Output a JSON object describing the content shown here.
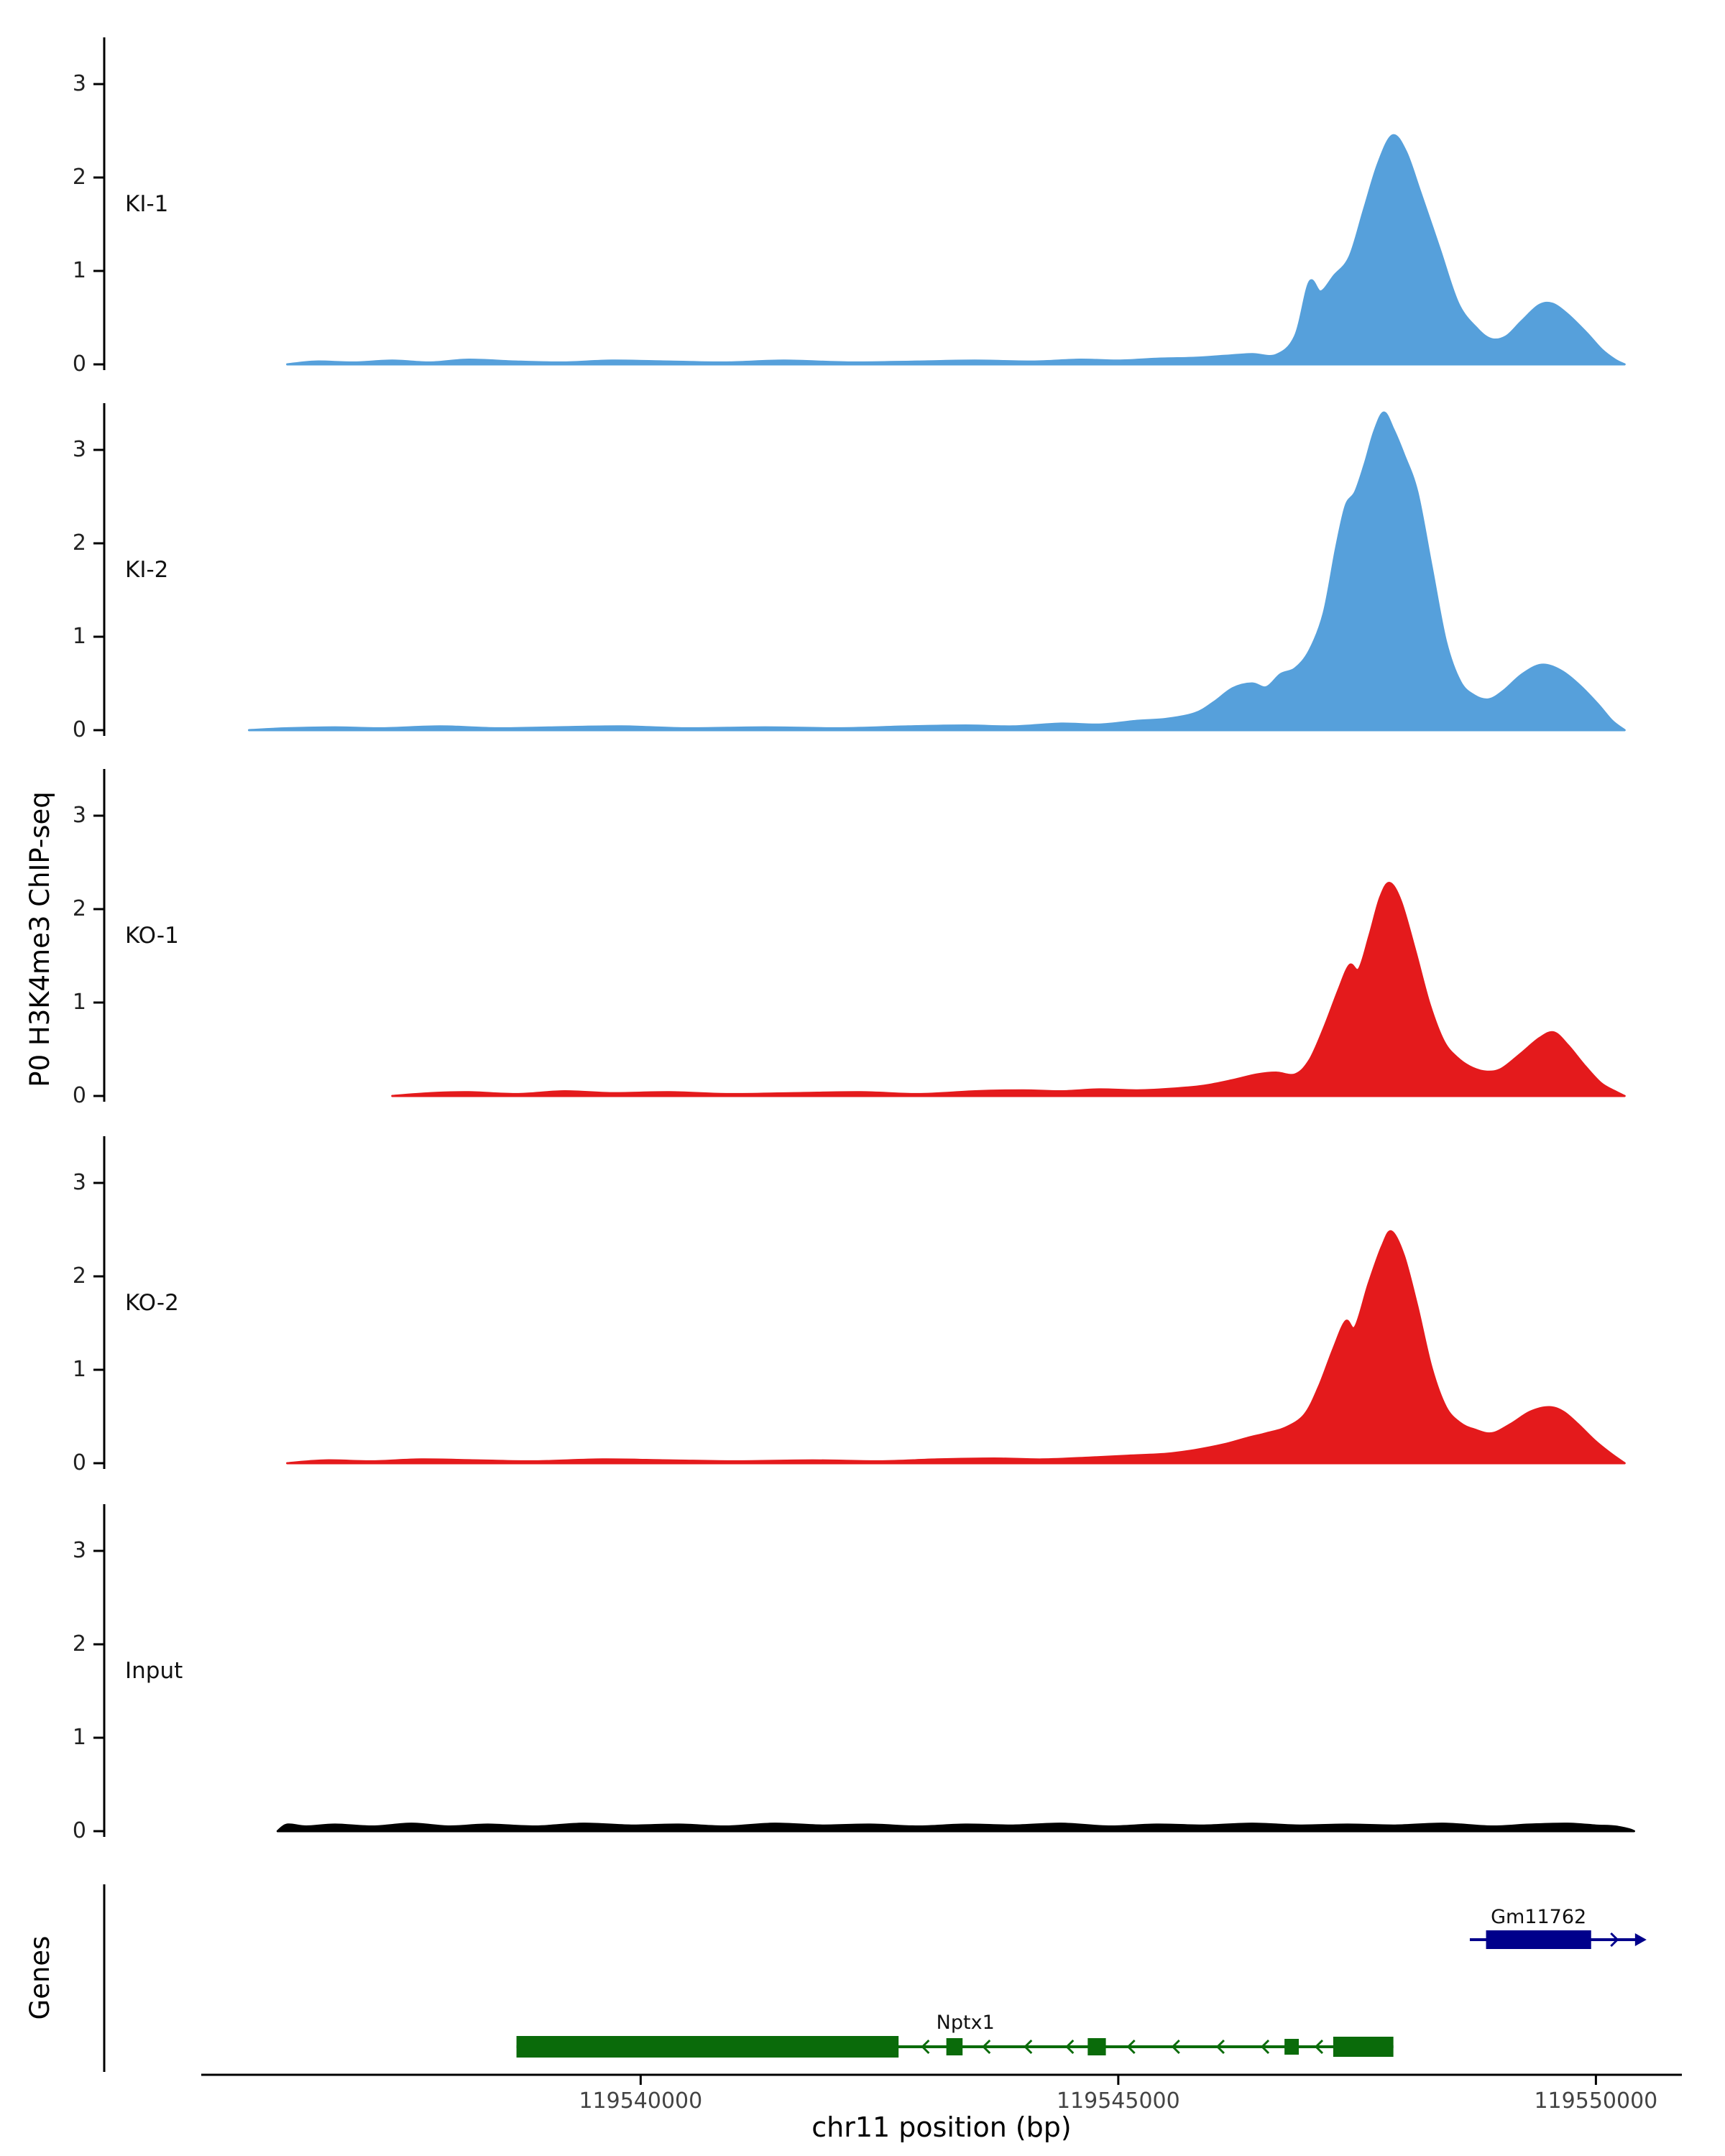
{
  "chart_data": {
    "type": "area",
    "title": "",
    "xlabel": "chr11 position (bp)",
    "ylabel": "P0 H3K4me3 ChIP-seq",
    "genes_axis_label": "Genes",
    "x_range": [
      119535400,
      119550900
    ],
    "ylim": [
      0,
      3.5
    ],
    "y_ticks": [
      0,
      1,
      2,
      3
    ],
    "x_ticks": [
      {
        "pos": 119540000,
        "label": "119540000"
      },
      {
        "pos": 119545000,
        "label": "119545000"
      },
      {
        "pos": 119550000,
        "label": "119550000"
      }
    ],
    "tracks": [
      {
        "label": "KI-1",
        "color": "#56a0db",
        "points": [
          [
            119536300,
            0
          ],
          [
            119536600,
            0.03
          ],
          [
            119537000,
            0.02
          ],
          [
            119537400,
            0.04
          ],
          [
            119537800,
            0.02
          ],
          [
            119538200,
            0.05
          ],
          [
            119538700,
            0.03
          ],
          [
            119539200,
            0.02
          ],
          [
            119539700,
            0.04
          ],
          [
            119540300,
            0.03
          ],
          [
            119540900,
            0.02
          ],
          [
            119541500,
            0.04
          ],
          [
            119542200,
            0.02
          ],
          [
            119542900,
            0.03
          ],
          [
            119543500,
            0.04
          ],
          [
            119544100,
            0.03
          ],
          [
            119544600,
            0.05
          ],
          [
            119545000,
            0.04
          ],
          [
            119545400,
            0.06
          ],
          [
            119545800,
            0.07
          ],
          [
            119546100,
            0.09
          ],
          [
            119546400,
            0.11
          ],
          [
            119546650,
            0.1
          ],
          [
            119546850,
            0.3
          ],
          [
            119547000,
            0.88
          ],
          [
            119547120,
            0.78
          ],
          [
            119547260,
            0.95
          ],
          [
            119547420,
            1.15
          ],
          [
            119547570,
            1.65
          ],
          [
            119547720,
            2.15
          ],
          [
            119547870,
            2.45
          ],
          [
            119548010,
            2.28
          ],
          [
            119548160,
            1.85
          ],
          [
            119548360,
            1.25
          ],
          [
            119548560,
            0.65
          ],
          [
            119548760,
            0.38
          ],
          [
            119548910,
            0.27
          ],
          [
            119549060,
            0.3
          ],
          [
            119549220,
            0.46
          ],
          [
            119549400,
            0.63
          ],
          [
            119549540,
            0.65
          ],
          [
            119549700,
            0.54
          ],
          [
            119549900,
            0.34
          ],
          [
            119550060,
            0.16
          ],
          [
            119550200,
            0.05
          ],
          [
            119550300,
            0
          ]
        ]
      },
      {
        "label": "KI-2",
        "color": "#56a0db",
        "points": [
          [
            119535900,
            0
          ],
          [
            119536300,
            0.02
          ],
          [
            119536800,
            0.03
          ],
          [
            119537300,
            0.02
          ],
          [
            119537900,
            0.04
          ],
          [
            119538500,
            0.02
          ],
          [
            119539100,
            0.03
          ],
          [
            119539800,
            0.04
          ],
          [
            119540500,
            0.02
          ],
          [
            119541300,
            0.03
          ],
          [
            119542100,
            0.02
          ],
          [
            119542800,
            0.04
          ],
          [
            119543400,
            0.05
          ],
          [
            119543900,
            0.04
          ],
          [
            119544400,
            0.07
          ],
          [
            119544800,
            0.06
          ],
          [
            119545200,
            0.1
          ],
          [
            119545500,
            0.12
          ],
          [
            119545800,
            0.18
          ],
          [
            119546000,
            0.3
          ],
          [
            119546200,
            0.45
          ],
          [
            119546400,
            0.5
          ],
          [
            119546550,
            0.46
          ],
          [
            119546700,
            0.6
          ],
          [
            119546850,
            0.66
          ],
          [
            119547000,
            0.85
          ],
          [
            119547150,
            1.25
          ],
          [
            119547280,
            1.95
          ],
          [
            119547380,
            2.4
          ],
          [
            119547480,
            2.55
          ],
          [
            119547580,
            2.85
          ],
          [
            119547680,
            3.2
          ],
          [
            119547780,
            3.4
          ],
          [
            119547880,
            3.22
          ],
          [
            119547990,
            2.95
          ],
          [
            119548130,
            2.55
          ],
          [
            119548280,
            1.75
          ],
          [
            119548430,
            0.95
          ],
          [
            119548580,
            0.52
          ],
          [
            119548730,
            0.37
          ],
          [
            119548880,
            0.33
          ],
          [
            119549030,
            0.42
          ],
          [
            119549230,
            0.6
          ],
          [
            119549430,
            0.7
          ],
          [
            119549630,
            0.64
          ],
          [
            119549830,
            0.48
          ],
          [
            119550020,
            0.28
          ],
          [
            119550170,
            0.1
          ],
          [
            119550300,
            0
          ]
        ]
      },
      {
        "label": "KO-1",
        "color": "#e41a1c",
        "points": [
          [
            119537400,
            0
          ],
          [
            119537800,
            0.03
          ],
          [
            119538200,
            0.04
          ],
          [
            119538700,
            0.02
          ],
          [
            119539200,
            0.05
          ],
          [
            119539700,
            0.03
          ],
          [
            119540300,
            0.04
          ],
          [
            119540900,
            0.02
          ],
          [
            119541600,
            0.03
          ],
          [
            119542300,
            0.04
          ],
          [
            119542900,
            0.02
          ],
          [
            119543500,
            0.05
          ],
          [
            119544000,
            0.06
          ],
          [
            119544400,
            0.05
          ],
          [
            119544800,
            0.07
          ],
          [
            119545200,
            0.06
          ],
          [
            119545600,
            0.08
          ],
          [
            119545900,
            0.11
          ],
          [
            119546200,
            0.17
          ],
          [
            119546450,
            0.23
          ],
          [
            119546650,
            0.25
          ],
          [
            119546850,
            0.23
          ],
          [
            119547000,
            0.38
          ],
          [
            119547150,
            0.72
          ],
          [
            119547300,
            1.12
          ],
          [
            119547420,
            1.4
          ],
          [
            119547520,
            1.36
          ],
          [
            119547630,
            1.72
          ],
          [
            119547740,
            2.12
          ],
          [
            119547840,
            2.28
          ],
          [
            119547960,
            2.08
          ],
          [
            119548110,
            1.55
          ],
          [
            119548260,
            0.98
          ],
          [
            119548410,
            0.58
          ],
          [
            119548560,
            0.4
          ],
          [
            119548710,
            0.3
          ],
          [
            119548860,
            0.26
          ],
          [
            119549010,
            0.29
          ],
          [
            119549210,
            0.45
          ],
          [
            119549410,
            0.62
          ],
          [
            119549560,
            0.68
          ],
          [
            119549710,
            0.54
          ],
          [
            119549870,
            0.34
          ],
          [
            119550050,
            0.14
          ],
          [
            119550200,
            0.05
          ],
          [
            119550300,
            0
          ]
        ]
      },
      {
        "label": "KO-2",
        "color": "#e41a1c",
        "points": [
          [
            119536300,
            0
          ],
          [
            119536700,
            0.03
          ],
          [
            119537200,
            0.02
          ],
          [
            119537700,
            0.04
          ],
          [
            119538300,
            0.03
          ],
          [
            119538900,
            0.02
          ],
          [
            119539600,
            0.04
          ],
          [
            119540300,
            0.03
          ],
          [
            119541000,
            0.02
          ],
          [
            119541800,
            0.03
          ],
          [
            119542500,
            0.02
          ],
          [
            119543100,
            0.04
          ],
          [
            119543700,
            0.05
          ],
          [
            119544200,
            0.04
          ],
          [
            119544700,
            0.06
          ],
          [
            119545100,
            0.08
          ],
          [
            119545500,
            0.1
          ],
          [
            119545800,
            0.14
          ],
          [
            119546100,
            0.2
          ],
          [
            119546350,
            0.27
          ],
          [
            119546550,
            0.32
          ],
          [
            119546750,
            0.38
          ],
          [
            119546950,
            0.52
          ],
          [
            119547100,
            0.82
          ],
          [
            119547250,
            1.22
          ],
          [
            119547380,
            1.52
          ],
          [
            119547480,
            1.46
          ],
          [
            119547620,
            1.92
          ],
          [
            119547760,
            2.32
          ],
          [
            119547860,
            2.48
          ],
          [
            119547990,
            2.22
          ],
          [
            119548130,
            1.68
          ],
          [
            119548280,
            1.02
          ],
          [
            119548430,
            0.6
          ],
          [
            119548580,
            0.43
          ],
          [
            119548730,
            0.36
          ],
          [
            119548910,
            0.32
          ],
          [
            119549110,
            0.42
          ],
          [
            119549310,
            0.55
          ],
          [
            119549510,
            0.6
          ],
          [
            119549660,
            0.55
          ],
          [
            119549810,
            0.42
          ],
          [
            119549990,
            0.24
          ],
          [
            119550160,
            0.1
          ],
          [
            119550300,
            0
          ]
        ]
      },
      {
        "label": "Input",
        "color": "#000000",
        "points": [
          [
            119536200,
            0
          ],
          [
            119536300,
            0.07
          ],
          [
            119536500,
            0.05
          ],
          [
            119536800,
            0.07
          ],
          [
            119537200,
            0.05
          ],
          [
            119537600,
            0.08
          ],
          [
            119538000,
            0.05
          ],
          [
            119538400,
            0.07
          ],
          [
            119538900,
            0.05
          ],
          [
            119539400,
            0.08
          ],
          [
            119539900,
            0.06
          ],
          [
            119540400,
            0.07
          ],
          [
            119540900,
            0.05
          ],
          [
            119541400,
            0.08
          ],
          [
            119541900,
            0.06
          ],
          [
            119542400,
            0.07
          ],
          [
            119542900,
            0.05
          ],
          [
            119543400,
            0.07
          ],
          [
            119543900,
            0.06
          ],
          [
            119544400,
            0.08
          ],
          [
            119544900,
            0.05
          ],
          [
            119545400,
            0.07
          ],
          [
            119545900,
            0.06
          ],
          [
            119546400,
            0.08
          ],
          [
            119546900,
            0.06
          ],
          [
            119547400,
            0.07
          ],
          [
            119547900,
            0.06
          ],
          [
            119548400,
            0.08
          ],
          [
            119548900,
            0.05
          ],
          [
            119549300,
            0.07
          ],
          [
            119549700,
            0.08
          ],
          [
            119550000,
            0.06
          ],
          [
            119550200,
            0.05
          ],
          [
            119550350,
            0.02
          ],
          [
            119550400,
            0
          ]
        ]
      }
    ],
    "genes": [
      {
        "name": "Gm11762",
        "strand": "+",
        "color": "#00008b",
        "line": [
          119548680,
          119550500
        ],
        "exons": [
          [
            119548850,
            119549950,
            26
          ]
        ],
        "label_bp": 119549400
      },
      {
        "name": "Nptx1",
        "strand": "-",
        "color": "#0a6b0a",
        "line": [
          119538700,
          119547880
        ],
        "exons": [
          [
            119538700,
            119542700,
            30
          ],
          [
            119543200,
            119543370,
            24
          ],
          [
            119544680,
            119544870,
            24
          ],
          [
            119546740,
            119546890,
            22
          ],
          [
            119547250,
            119547880,
            28
          ]
        ],
        "label_bp": 119543400
      }
    ]
  }
}
